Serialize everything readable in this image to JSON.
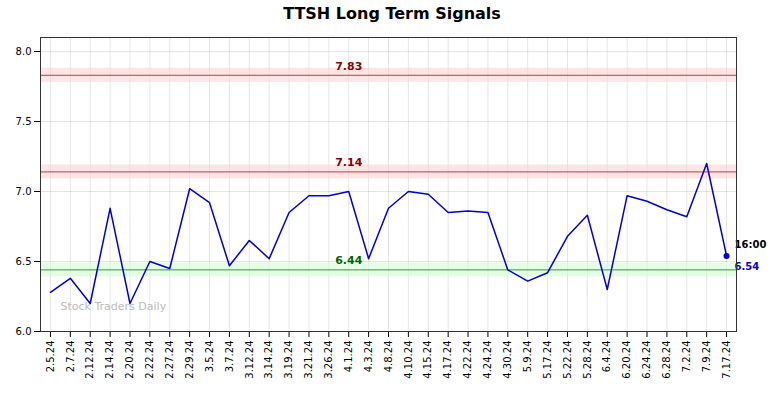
{
  "chart_data": {
    "type": "line",
    "title": "TTSH Long Term Signals",
    "categories": [
      "2.5.24",
      "2.7.24",
      "2.12.24",
      "2.14.24",
      "2.20.24",
      "2.22.24",
      "2.27.24",
      "2.29.24",
      "3.5.24",
      "3.7.24",
      "3.12.24",
      "3.14.24",
      "3.19.24",
      "3.21.24",
      "3.26.24",
      "4.1.24",
      "4.3.24",
      "4.8.24",
      "4.10.24",
      "4.15.24",
      "4.17.24",
      "4.22.24",
      "4.24.24",
      "4.30.24",
      "5.9.24",
      "5.17.24",
      "5.22.24",
      "5.28.24",
      "6.4.24",
      "6.20.24",
      "6.24.24",
      "6.28.24",
      "7.2.24",
      "7.9.24",
      "7.17.24"
    ],
    "values": [
      6.28,
      6.38,
      6.2,
      6.88,
      6.2,
      6.5,
      6.45,
      7.02,
      6.92,
      6.47,
      6.65,
      6.52,
      6.85,
      6.97,
      6.97,
      7.0,
      6.52,
      6.88,
      7.0,
      6.98,
      6.85,
      6.86,
      6.85,
      6.44,
      6.36,
      6.42,
      6.68,
      6.83,
      6.3,
      6.97,
      6.93,
      6.87,
      6.82,
      7.2,
      6.54
    ],
    "color": "#0000cc",
    "marker": "last",
    "hlines": [
      {
        "value": 7.83,
        "label": "7.83",
        "color": "#8b0000",
        "band_color": "#ffcccc"
      },
      {
        "value": 7.14,
        "label": "7.14",
        "color": "#8b0000",
        "band_color": "#ffcccc"
      },
      {
        "value": 6.44,
        "label": "6.44",
        "color": "#006400",
        "band_color": "#ccffcc"
      }
    ],
    "last_labels": [
      {
        "text": "16:00",
        "color": "#000000"
      },
      {
        "text": "6.54",
        "color": "#0000cc"
      }
    ],
    "watermark": {
      "text": "Stock Traders Daily",
      "color": "#bbbbbb"
    },
    "ylim": [
      6.0,
      8.1
    ],
    "yticks": [
      {
        "value": 6.0,
        "label": "6.0"
      },
      6.5,
      {
        "value": 7.0,
        "label": "7.0"
      },
      7.5,
      {
        "value": 8.0,
        "label": "8.0"
      }
    ],
    "grid": true
  }
}
